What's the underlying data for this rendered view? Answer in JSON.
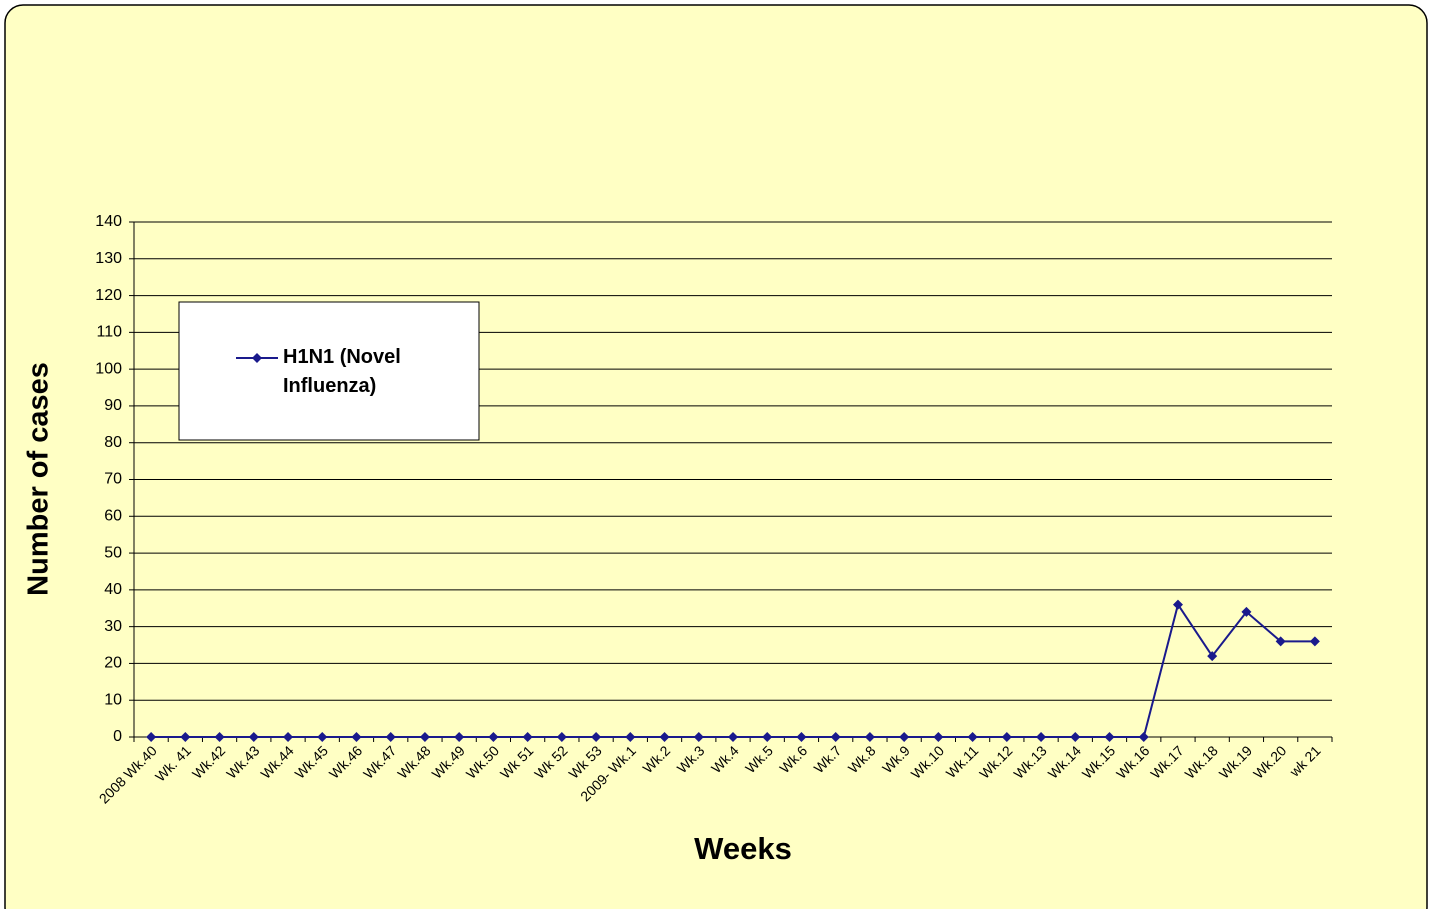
{
  "chart_data": {
    "type": "line",
    "x_label": "Weeks",
    "y_label": "Number of cases",
    "categories": [
      "2008 Wk.40",
      "Wk. 41",
      "Wk.42",
      "Wk.43",
      "Wk.44",
      "Wk.45",
      "Wk.46",
      "Wk.47",
      "Wk.48",
      "Wk.49",
      "Wk.50",
      "Wk 51",
      "Wk 52",
      "Wk 53",
      "2009- Wk.1",
      "Wk.2",
      "Wk.3",
      "Wk.4",
      "Wk.5",
      "Wk.6",
      "Wk.7",
      "Wk.8",
      "Wk.9",
      "Wk.10",
      "Wk.11",
      "Wk.12",
      "Wk.13",
      "Wk.14",
      "Wk.15",
      "Wk.16",
      "Wk.17",
      "Wk.18",
      "Wk.19",
      "Wk.20",
      "wk 21"
    ],
    "series": [
      {
        "name": "H1N1 (Novel Influenza)",
        "color": "#1a1a8c",
        "values": [
          0,
          0,
          0,
          0,
          0,
          0,
          0,
          0,
          0,
          0,
          0,
          0,
          0,
          0,
          0,
          0,
          0,
          0,
          0,
          0,
          0,
          0,
          0,
          0,
          0,
          0,
          0,
          0,
          0,
          0,
          36,
          22,
          34,
          26,
          26
        ]
      }
    ],
    "ylim": [
      0,
      140
    ],
    "yticks": [
      0,
      10,
      20,
      30,
      40,
      50,
      60,
      70,
      80,
      90,
      100,
      110,
      120,
      130,
      140
    ],
    "grid": true,
    "legend": "upper left"
  }
}
